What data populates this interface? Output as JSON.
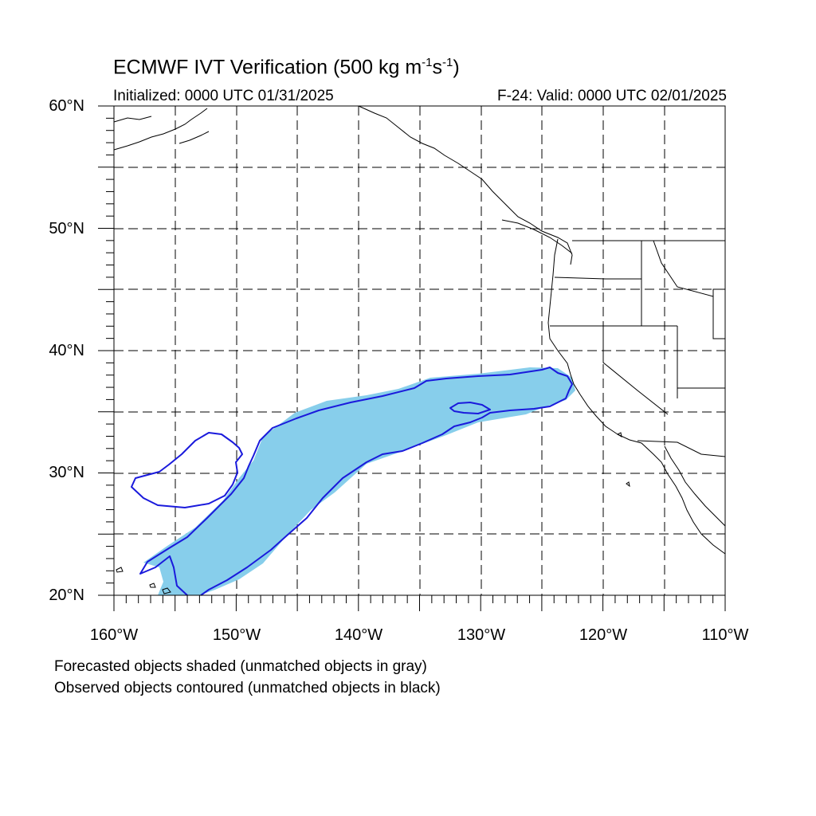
{
  "title": {
    "main": "ECMWF IVT Verification (500 kg m",
    "exp1": "-1",
    "mid": "s",
    "exp2": "-1",
    "close": ")"
  },
  "initialized": "Initialized: 0000 UTC 01/31/2025",
  "valid": "F-24: Valid: 0000 UTC 02/01/2025",
  "lat_labels": [
    "60°N",
    "50°N",
    "40°N",
    "30°N",
    "20°N"
  ],
  "lon_labels": [
    "160°W",
    "150°W",
    "140°W",
    "130°W",
    "120°W",
    "110°W"
  ],
  "notes": [
    "Forecasted objects shaded (unmatched objects in gray)",
    "Observed objects contoured (unmatched objects in black)"
  ],
  "colors": {
    "forecast_fill": "#87ceeb",
    "observed_contour": "#1a1adc",
    "coast": "#000000",
    "grid": "#000000"
  },
  "legend": {
    "forecast": "forecast-object-shaded",
    "observed": "observed-object-contour"
  }
}
